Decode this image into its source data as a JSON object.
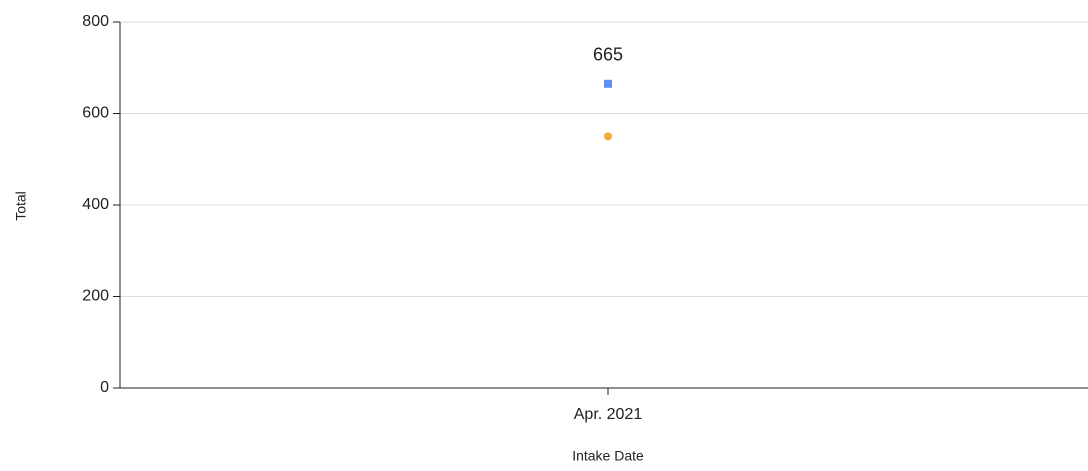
{
  "chart_data": {
    "type": "scatter",
    "x_label": "Intake Date",
    "y_label": "Total",
    "categories": [
      "Apr. 2021"
    ],
    "series": [
      {
        "color": "#5b8ff0",
        "marker": "square",
        "data_labels": true,
        "values": [
          665
        ]
      },
      {
        "color": "#f5a93a",
        "marker": "circle",
        "data_labels": false,
        "values": [
          550
        ]
      }
    ],
    "ylim": [
      0,
      800
    ],
    "yticks": [
      0,
      200,
      400,
      600,
      800
    ],
    "grid": true
  }
}
